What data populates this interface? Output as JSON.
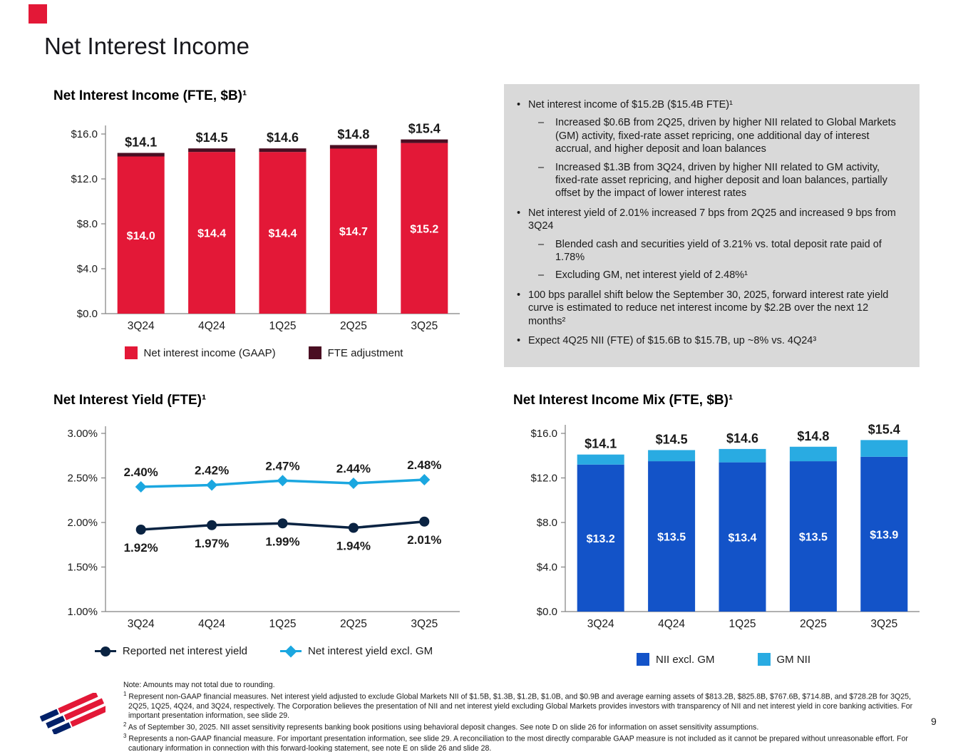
{
  "title": "Net Interest Income",
  "page": {
    "number": "9"
  },
  "colors": {
    "bofa_red": "#E31837",
    "fte_dark_red": "#4A0E22",
    "navy": "#0A2342",
    "light_blue": "#1BA7E0",
    "mix_blue": "#1353C8",
    "mix_light_blue": "#29ABE2",
    "box_bg": "#D9D9D9",
    "logo_blue": "#012169",
    "axis_gray": "#808080"
  },
  "chart_data": [
    {
      "id": "nii_fte",
      "type": "bar",
      "title": "Net Interest Income (FTE, $B)¹",
      "categories": [
        "3Q24",
        "4Q24",
        "1Q25",
        "2Q25",
        "3Q25"
      ],
      "series": [
        {
          "name": "Net interest income (GAAP)",
          "color_key": "bofa_red",
          "values": [
            14.0,
            14.4,
            14.4,
            14.7,
            15.2
          ],
          "labels": [
            "$14.0",
            "$14.4",
            "$14.4",
            "$14.7",
            "$15.2"
          ]
        },
        {
          "name": "FTE adjustment",
          "color_key": "fte_dark_red",
          "values": [
            0.1,
            0.1,
            0.2,
            0.1,
            0.2
          ]
        }
      ],
      "totals": [
        14.1,
        14.5,
        14.6,
        14.8,
        15.4
      ],
      "total_labels": [
        "$14.1",
        "$14.5",
        "$14.6",
        "$14.8",
        "$15.4"
      ],
      "ylim": [
        0,
        16
      ],
      "yticks": [
        0,
        4,
        8,
        12,
        16
      ],
      "ytick_labels": [
        "$0.0",
        "$4.0",
        "$8.0",
        "$12.0",
        "$16.0"
      ],
      "legend_position": "bottom",
      "grid": false
    },
    {
      "id": "net_interest_yield",
      "type": "line",
      "title": "Net Interest Yield (FTE)¹",
      "categories": [
        "3Q24",
        "4Q24",
        "1Q25",
        "2Q25",
        "3Q25"
      ],
      "series": [
        {
          "name": "Net interest yield excl. GM",
          "color_key": "light_blue",
          "marker": "diamond",
          "label_position": "above",
          "values": [
            2.4,
            2.42,
            2.47,
            2.44,
            2.48
          ],
          "labels": [
            "2.40%",
            "2.42%",
            "2.47%",
            "2.44%",
            "2.48%"
          ]
        },
        {
          "name": "Reported net interest yield",
          "color_key": "navy",
          "marker": "circle",
          "label_position": "below",
          "values": [
            1.92,
            1.97,
            1.99,
            1.94,
            2.01
          ],
          "labels": [
            "1.92%",
            "1.97%",
            "1.99%",
            "1.94%",
            "2.01%"
          ]
        }
      ],
      "ylim": [
        1.0,
        3.0
      ],
      "yticks": [
        1.0,
        1.5,
        2.0,
        2.5,
        3.0
      ],
      "ytick_labels": [
        "1.00%",
        "1.50%",
        "2.00%",
        "2.50%",
        "3.00%"
      ],
      "legend_position": "bottom",
      "grid": false
    },
    {
      "id": "nii_mix",
      "type": "bar",
      "title": "Net Interest Income Mix (FTE, $B)¹",
      "categories": [
        "3Q24",
        "4Q24",
        "1Q25",
        "2Q25",
        "3Q25"
      ],
      "series": [
        {
          "name": "NII excl. GM",
          "color_key": "mix_blue",
          "values": [
            13.2,
            13.5,
            13.4,
            13.5,
            13.9
          ],
          "labels": [
            "$13.2",
            "$13.5",
            "$13.4",
            "$13.5",
            "$13.9"
          ]
        },
        {
          "name": "GM NII",
          "color_key": "mix_light_blue",
          "values": [
            0.9,
            1.0,
            1.2,
            1.3,
            1.5
          ]
        }
      ],
      "totals": [
        14.1,
        14.5,
        14.6,
        14.8,
        15.4
      ],
      "total_labels": [
        "$14.1",
        "$14.5",
        "$14.6",
        "$14.8",
        "$15.4"
      ],
      "ylim": [
        0,
        16
      ],
      "yticks": [
        0,
        4,
        8,
        12,
        16
      ],
      "ytick_labels": [
        "$0.0",
        "$4.0",
        "$8.0",
        "$12.0",
        "$16.0"
      ],
      "legend_position": "bottom",
      "grid": false
    }
  ],
  "commentary": {
    "bullets": [
      {
        "level": 1,
        "text": "Net interest income of $15.2B ($15.4B FTE)¹"
      },
      {
        "level": 2,
        "text": "Increased $0.6B from 2Q25, driven by higher NII related to Global Markets (GM) activity, fixed-rate asset repricing, one additional day of interest accrual, and higher deposit and loan balances"
      },
      {
        "level": 2,
        "text": "Increased $1.3B from 3Q24, driven by higher NII related to GM activity, fixed-rate asset repricing, and higher deposit and loan balances, partially offset by the impact of lower interest rates"
      },
      {
        "level": 1,
        "text": "Net interest yield of 2.01% increased 7 bps from 2Q25 and increased 9 bps from 3Q24"
      },
      {
        "level": 2,
        "text": "Blended cash and securities yield of 3.21% vs. total deposit rate paid of 1.78%"
      },
      {
        "level": 2,
        "text": "Excluding GM, net interest yield of 2.48%¹"
      },
      {
        "level": 1,
        "text": "100 bps parallel shift below the September 30, 2025, forward interest rate yield curve is estimated to reduce net interest income by $2.2B over the next 12 months²"
      },
      {
        "level": 1,
        "text": "Expect 4Q25 NII (FTE) of $15.6B to $15.7B, up ~8% vs. 4Q24³"
      }
    ]
  },
  "footnotes": {
    "note": "Note: Amounts may not total due to rounding.",
    "items": [
      {
        "sup": "1",
        "text": "Represent non-GAAP financial measures. Net interest yield adjusted to exclude Global Markets NII of $1.5B, $1.3B, $1.2B, $1.0B, and $0.9B and average earning assets of $813.2B, $825.8B, $767.6B, $714.8B, and $728.2B for 3Q25, 2Q25, 1Q25, 4Q24, and 3Q24, respectively. The Corporation believes the presentation of NII and net interest yield excluding Global Markets provides investors with transparency of NII and net interest yield in core banking activities. For important presentation information, see slide 29."
      },
      {
        "sup": "2",
        "text": "As of September 30, 2025. NII asset sensitivity represents banking book positions using behavioral deposit changes. See note D on slide 26 for information on asset sensitivity assumptions."
      },
      {
        "sup": "3",
        "text": "Represents a non-GAAP financial measure. For important presentation information, see slide 29. A reconciliation to the most directly comparable GAAP measure is not included as it cannot be prepared without unreasonable effort. For cautionary information in connection with this forward-looking statement, see note E on slide 26 and slide 28."
      }
    ]
  }
}
